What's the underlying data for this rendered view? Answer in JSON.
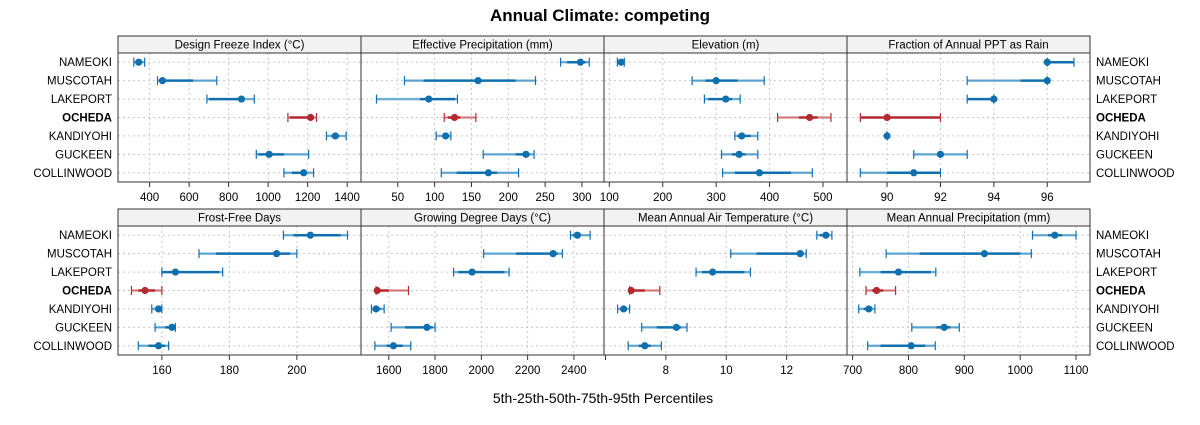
{
  "chart_data": {
    "type": "dotplot-percentiles",
    "title": "Annual Climate: competing",
    "xlabel": "5th-25th-50th-75th-95th Percentiles",
    "ylabel": "",
    "grid": true,
    "layout": "2 rows x 4 columns",
    "stations": [
      "NAMEOKI",
      "MUSCOTAH",
      "LAKEPORT",
      "OCHEDA",
      "KANDIYOHI",
      "GUCKEEN",
      "COLLINWOOD"
    ],
    "highlight_station": "OCHEDA",
    "colors": {
      "default": "#1070ae",
      "highlight": "#b2292e",
      "outer_whisker": "#6aaed6",
      "outer_whisker_highlight": "#d98a8c",
      "grid": "#c8c8c8",
      "strip": "#f2f2f2"
    },
    "percentile_labels": [
      "p5",
      "p25",
      "p50",
      "p75",
      "p95"
    ],
    "panels": [
      {
        "name": "Design Freeze Index (°C)",
        "xlim": [
          240,
          1470
        ],
        "ticks": [
          400,
          600,
          800,
          1000,
          1200,
          1400
        ],
        "tick_side": "bottom",
        "values": {
          "NAMEOKI": [
            320,
            330,
            345,
            360,
            375
          ],
          "MUSCOTAH": [
            440,
            450,
            465,
            620,
            740
          ],
          "LAKEPORT": [
            690,
            700,
            865,
            880,
            930
          ],
          "OCHEDA": [
            1100,
            1110,
            1215,
            1230,
            1245
          ],
          "KANDIYOHI": [
            1295,
            1320,
            1340,
            1360,
            1395
          ],
          "GUCKEEN": [
            940,
            950,
            1005,
            1080,
            1205
          ],
          "COLLINWOOD": [
            1080,
            1120,
            1180,
            1195,
            1230
          ]
        }
      },
      {
        "name": "Effective Precipitation (mm)",
        "xlim": [
          0,
          330
        ],
        "ticks": [
          50,
          100,
          150,
          200,
          250,
          300
        ],
        "tick_side": "bottom",
        "values": {
          "NAMEOKI": [
            271,
            280,
            298,
            305,
            310
          ],
          "MUSCOTAH": [
            59,
            85,
            159,
            210,
            237
          ],
          "LAKEPORT": [
            21,
            80,
            92,
            128,
            131
          ],
          "OCHEDA": [
            113,
            118,
            127,
            135,
            156
          ],
          "KANDIYOHI": [
            102,
            110,
            115,
            119,
            122
          ],
          "GUCKEEN": [
            166,
            210,
            224,
            229,
            235
          ],
          "COLLINWOOD": [
            109,
            130,
            173,
            185,
            214
          ]
        }
      },
      {
        "name": "Elevation (m)",
        "xlim": [
          90,
          545
        ],
        "ticks": [
          100,
          200,
          300,
          400,
          500
        ],
        "tick_side": "bottom",
        "values": {
          "NAMEOKI": [
            115,
            118,
            122,
            126,
            128
          ],
          "MUSCOTAH": [
            255,
            280,
            300,
            340,
            390
          ],
          "LAKEPORT": [
            278,
            285,
            318,
            330,
            345
          ],
          "OCHEDA": [
            415,
            455,
            475,
            490,
            515
          ],
          "KANDIYOHI": [
            335,
            340,
            348,
            365,
            378
          ],
          "GUCKEEN": [
            310,
            330,
            343,
            355,
            378
          ],
          "COLLINWOOD": [
            312,
            335,
            381,
            440,
            480
          ]
        }
      },
      {
        "name": "Fraction of Annual PPT as Rain",
        "xlim": [
          88.5,
          97.6
        ],
        "ticks": [
          90,
          92,
          94,
          96
        ],
        "tick_side": "bottom",
        "values": {
          "NAMEOKI": [
            96,
            96,
            96,
            97,
            97
          ],
          "MUSCOTAH": [
            93,
            95,
            96,
            96,
            96
          ],
          "LAKEPORT": [
            93,
            93,
            94,
            94,
            94
          ],
          "OCHEDA": [
            89,
            89,
            90,
            92,
            92
          ],
          "KANDIYOHI": [
            90,
            90,
            90,
            90,
            90
          ],
          "GUCKEEN": [
            91,
            92,
            92,
            92,
            93
          ],
          "COLLINWOOD": [
            89,
            90,
            91,
            92,
            92
          ]
        }
      },
      {
        "name": "Frost-Free Days",
        "xlim": [
          147,
          219
        ],
        "ticks": [
          160,
          180,
          200
        ],
        "tick_side": "bottom",
        "values": {
          "NAMEOKI": [
            196,
            199,
            204,
            213,
            215
          ],
          "MUSCOTAH": [
            171,
            176,
            194,
            198,
            200
          ],
          "LAKEPORT": [
            160,
            160,
            164,
            177,
            178
          ],
          "OCHEDA": [
            151,
            153,
            155,
            158,
            160
          ],
          "KANDIYOHI": [
            157,
            158,
            159,
            159,
            160
          ],
          "GUCKEEN": [
            158,
            161,
            163,
            164,
            164
          ],
          "COLLINWOOD": [
            153,
            156,
            159,
            161,
            162
          ]
        }
      },
      {
        "name": "Growing Degree Days (°C)",
        "xlim": [
          1480,
          2530
        ],
        "ticks": [
          1600,
          1800,
          2000,
          2200,
          2400
        ],
        "tick_side": "bottom",
        "values": {
          "NAMEOKI": [
            2385,
            2395,
            2415,
            2430,
            2470
          ],
          "MUSCOTAH": [
            2010,
            2150,
            2310,
            2330,
            2350
          ],
          "LAKEPORT": [
            1880,
            1900,
            1960,
            2100,
            2120
          ],
          "OCHEDA": [
            1545,
            1548,
            1550,
            1600,
            1685
          ],
          "KANDIYOHI": [
            1525,
            1530,
            1545,
            1565,
            1580
          ],
          "GUCKEEN": [
            1610,
            1670,
            1765,
            1790,
            1800
          ],
          "COLLINWOOD": [
            1540,
            1590,
            1620,
            1660,
            1695
          ]
        }
      },
      {
        "name": "Mean Annual Air Temperature (°C)",
        "xlim": [
          5.95,
          14.0
        ],
        "ticks": [
          8,
          10,
          12
        ],
        "extra_tick_marks": [
          6
        ],
        "tick_side": "bottom",
        "values": {
          "NAMEOKI": [
            13.0,
            13.1,
            13.3,
            13.4,
            13.5
          ],
          "MUSCOTAH": [
            10.15,
            11.0,
            12.45,
            12.55,
            12.65
          ],
          "LAKEPORT": [
            9.0,
            9.2,
            9.55,
            10.6,
            10.8
          ],
          "OCHEDA": [
            6.8,
            6.82,
            6.85,
            7.3,
            7.8
          ],
          "KANDIYOHI": [
            6.4,
            6.5,
            6.6,
            6.7,
            6.8
          ],
          "GUCKEEN": [
            7.2,
            7.7,
            8.35,
            8.5,
            8.7
          ],
          "COLLINWOOD": [
            6.75,
            7.1,
            7.3,
            7.5,
            7.85
          ]
        }
      },
      {
        "name": "Mean Annual Precipitation (mm)",
        "xlim": [
          690,
          1125
        ],
        "ticks": [
          700,
          800,
          900,
          1000,
          1100
        ],
        "tick_side": "bottom",
        "values": {
          "NAMEOKI": [
            1022,
            1050,
            1062,
            1075,
            1100
          ],
          "MUSCOTAH": [
            760,
            820,
            936,
            1000,
            1020
          ],
          "LAKEPORT": [
            713,
            750,
            782,
            840,
            849
          ],
          "OCHEDA": [
            724,
            735,
            743,
            755,
            777
          ],
          "KANDIYOHI": [
            711,
            720,
            729,
            735,
            740
          ],
          "GUCKEEN": [
            806,
            850,
            864,
            875,
            891
          ],
          "COLLINWOOD": [
            727,
            750,
            805,
            830,
            848
          ]
        }
      }
    ]
  }
}
